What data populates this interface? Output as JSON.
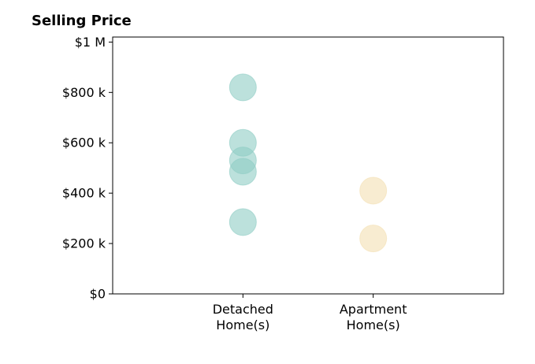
{
  "chart_data": {
    "type": "scatter",
    "title": "Selling Price",
    "categories": [
      "Detached\nHome(s)",
      "Apartment\nHome(s)"
    ],
    "y_tick_labels": [
      "$0",
      "$200 k",
      "$400 k",
      "$600 k",
      "$800 k",
      "$1 M"
    ],
    "y_ticks": [
      0,
      200000,
      400000,
      600000,
      800000,
      1000000
    ],
    "ylim": [
      0,
      1020000
    ],
    "xlim": [
      -1,
      2
    ],
    "grid": false,
    "series": [
      {
        "category_index": 0,
        "color": "#8fcdc4",
        "values": [
          820000,
          600000,
          530000,
          485000,
          285000
        ]
      },
      {
        "category_index": 1,
        "color": "#f3dfb3",
        "values": [
          410000,
          220000
        ]
      }
    ]
  }
}
